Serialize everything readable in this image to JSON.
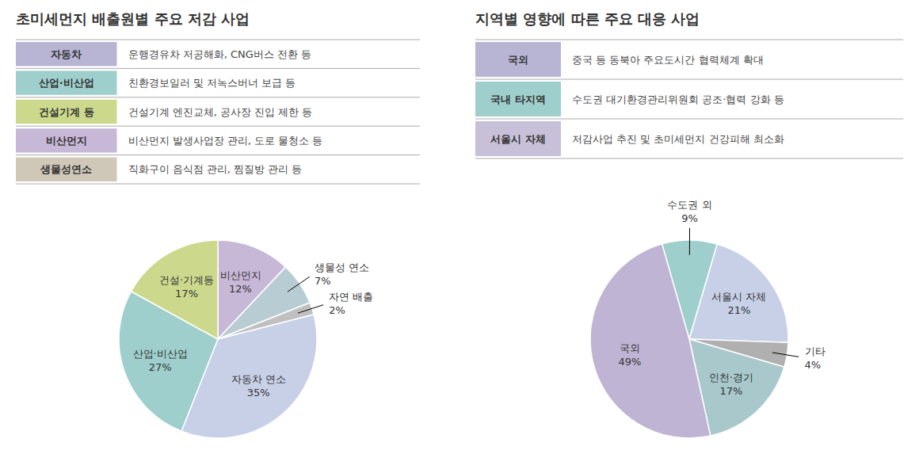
{
  "chart_data": [
    {
      "type": "table",
      "title": "초미세먼지 배출원별 주요 저감 사업",
      "categories": [
        "자동차",
        "산업·비산업",
        "건설기계 등",
        "비산먼지",
        "생물성연소"
      ],
      "annotations": [
        "운행경유차 저공해화, CNG버스 전환 등",
        "친환경보일러 및 저녹스버너 보급 등",
        "건설기계 엔진교체, 공사장 진입 제한 등",
        "비산먼지 발생사업장 관리, 도로 물청소 등",
        "직화구이 음식점 관리, 찜질방 관리 등"
      ],
      "colors": [
        "#b8b4d4",
        "#9ecfcc",
        "#ccd98c",
        "#c8b8d8",
        "#cfc8b8"
      ]
    },
    {
      "type": "table",
      "title": "지역별 영향에 따른 주요 대응 사업",
      "categories": [
        "국외",
        "국내 타지역",
        "서울시 자체"
      ],
      "annotations": [
        "중국 등 동북아 주요도시간 협력체계 확대",
        "수도권 대기환경관리위원회 공조·협력 강화 등",
        "저감사업 추진 및 초미세먼지 건강피해 최소화"
      ],
      "colors": [
        "#b8b4d4",
        "#9ecfcc",
        "#c8c0d8"
      ]
    },
    {
      "type": "pie",
      "categories": [
        "비산먼지",
        "생물성 연소",
        "자연 배출",
        "자동차 연소",
        "산업·비산업",
        "건설·기계등"
      ],
      "values": [
        12,
        7,
        2,
        35,
        27,
        17
      ],
      "value_labels": [
        "12%",
        "7%",
        "2%",
        "35%",
        "27%",
        "17%"
      ],
      "colors": [
        "#c8b8d8",
        "#b8ccd4",
        "#c0c0c0",
        "#c8d0e8",
        "#9ecfcc",
        "#ccd98c"
      ],
      "data_labels": true
    },
    {
      "type": "pie",
      "categories": [
        "수도권 외",
        "서울시 자체",
        "기타",
        "인천·경기",
        "국외"
      ],
      "values": [
        9,
        21,
        4,
        17,
        49
      ],
      "value_labels": [
        "9%",
        "21%",
        "4%",
        "17%",
        "49%"
      ],
      "colors": [
        "#9ecfcc",
        "#c8d0e8",
        "#b0b0b0",
        "#a8c8cc",
        "#c0b4d4"
      ],
      "data_labels": true
    }
  ]
}
